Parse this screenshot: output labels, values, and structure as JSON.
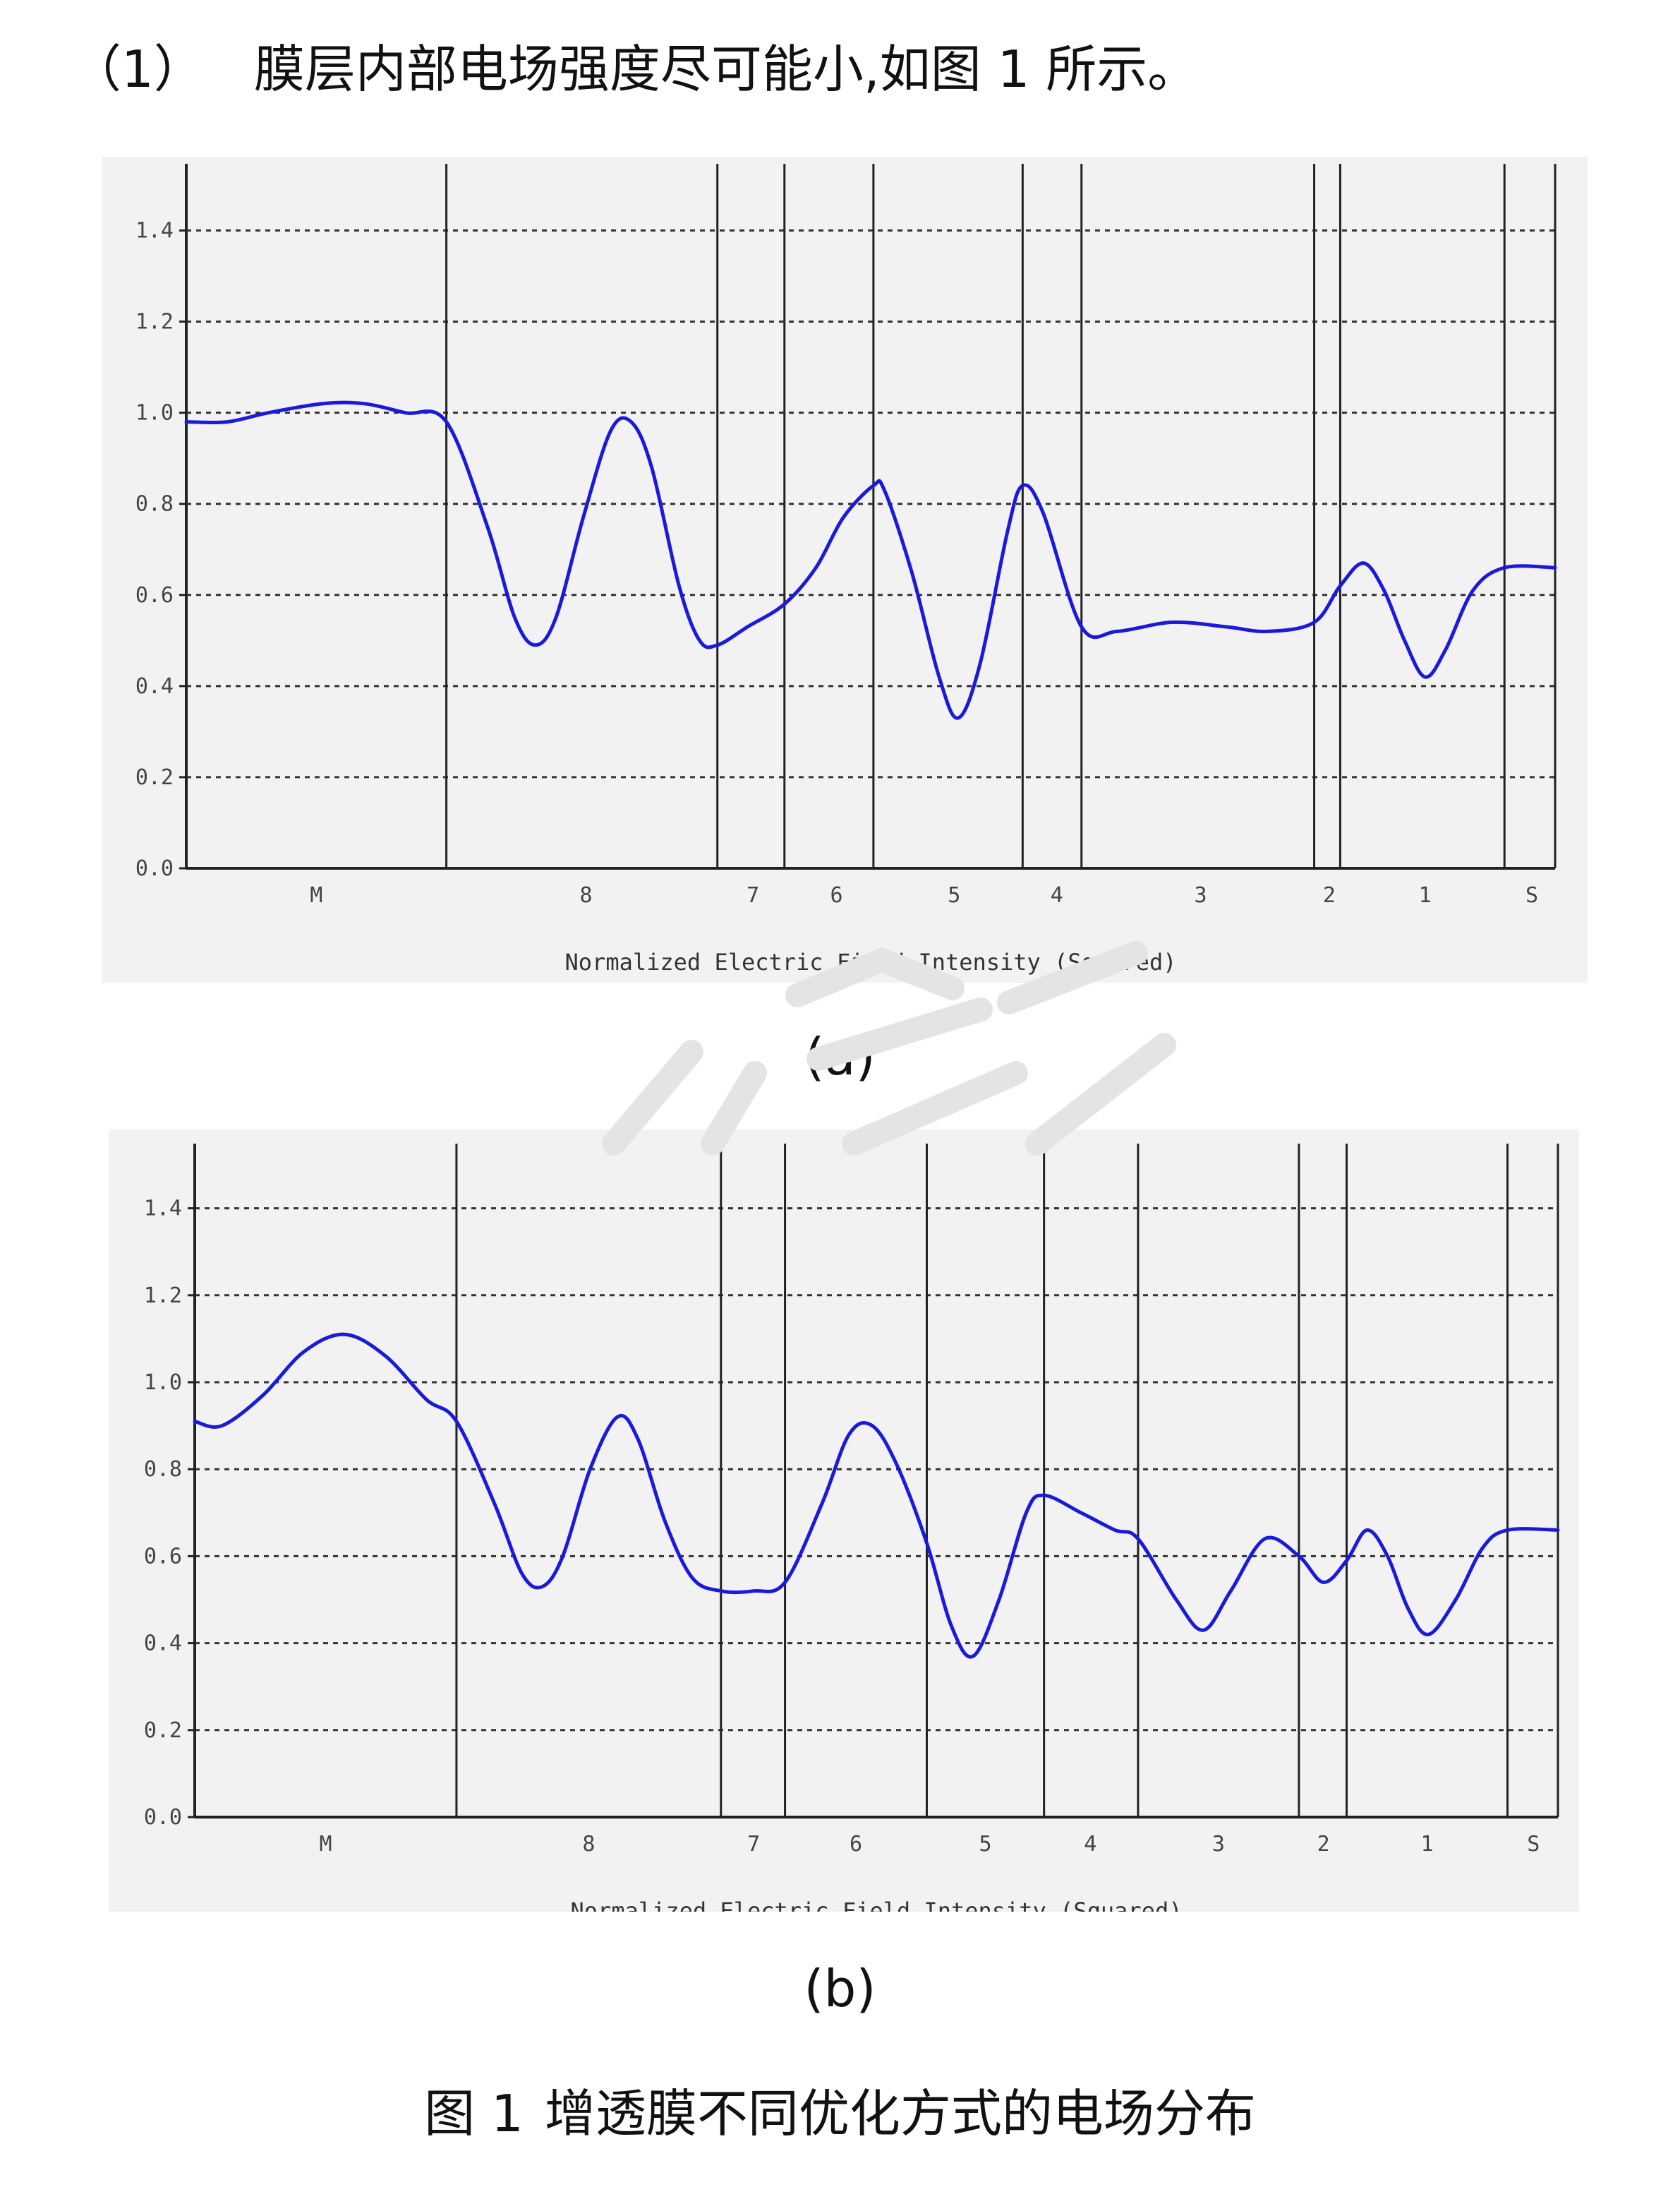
{
  "heading": {
    "number": "（1）",
    "text": "膜层内部电场强度尽可能小,如图 1 所示。"
  },
  "figure_caption": {
    "label": "图 1",
    "text": "增透膜不同优化方式的电场分布"
  },
  "chart_data": [
    {
      "id": "a",
      "panel_label": "(a)",
      "type": "line",
      "xlabel": "Normalized Electric Field Intensity (Squared)",
      "ylabel": "",
      "ylim": [
        0,
        1.5
      ],
      "yticks": [
        "0.0",
        "0.2",
        "0.4",
        "0.6",
        "0.8",
        "1.0",
        "1.2",
        "1.4"
      ],
      "grid": "horizontal dashed",
      "x_axis": "layer position from medium M through layers 8..1 to substrate S",
      "boundaries": [
        0,
        0.19,
        0.388,
        0.437,
        0.502,
        0.611,
        0.654,
        0.824,
        0.843,
        0.963,
        1.0
      ],
      "layers": [
        {
          "label": "M",
          "center": 0.095
        },
        {
          "label": "8",
          "center": 0.292
        },
        {
          "label": "7",
          "center": 0.414
        },
        {
          "label": "6",
          "center": 0.475
        },
        {
          "label": "5",
          "center": 0.561
        },
        {
          "label": "4",
          "center": 0.636
        },
        {
          "label": "3",
          "center": 0.741
        },
        {
          "label": "2",
          "center": 0.835
        },
        {
          "label": "1",
          "center": 0.905
        },
        {
          "label": "S",
          "center": 0.983
        }
      ],
      "series": [
        {
          "color": "#1a1adb",
          "points": [
            [
              0.0,
              0.98
            ],
            [
              0.03,
              0.98
            ],
            [
              0.06,
              1.0
            ],
            [
              0.1,
              1.02
            ],
            [
              0.13,
              1.02
            ],
            [
              0.16,
              1.0
            ],
            [
              0.19,
              0.98
            ],
            [
              0.22,
              0.75
            ],
            [
              0.24,
              0.55
            ],
            [
              0.255,
              0.49
            ],
            [
              0.27,
              0.55
            ],
            [
              0.29,
              0.77
            ],
            [
              0.31,
              0.96
            ],
            [
              0.325,
              0.98
            ],
            [
              0.34,
              0.88
            ],
            [
              0.36,
              0.62
            ],
            [
              0.375,
              0.5
            ],
            [
              0.388,
              0.49
            ],
            [
              0.41,
              0.53
            ],
            [
              0.437,
              0.58
            ],
            [
              0.46,
              0.66
            ],
            [
              0.48,
              0.77
            ],
            [
              0.502,
              0.84
            ],
            [
              0.51,
              0.83
            ],
            [
              0.53,
              0.65
            ],
            [
              0.55,
              0.42
            ],
            [
              0.564,
              0.33
            ],
            [
              0.58,
              0.45
            ],
            [
              0.6,
              0.74
            ],
            [
              0.611,
              0.84
            ],
            [
              0.626,
              0.78
            ],
            [
              0.654,
              0.53
            ],
            [
              0.68,
              0.52
            ],
            [
              0.72,
              0.54
            ],
            [
              0.76,
              0.53
            ],
            [
              0.79,
              0.52
            ],
            [
              0.824,
              0.54
            ],
            [
              0.843,
              0.62
            ],
            [
              0.86,
              0.67
            ],
            [
              0.875,
              0.61
            ],
            [
              0.89,
              0.5
            ],
            [
              0.905,
              0.42
            ],
            [
              0.92,
              0.48
            ],
            [
              0.94,
              0.61
            ],
            [
              0.963,
              0.66
            ],
            [
              1.0,
              0.66
            ]
          ]
        }
      ]
    },
    {
      "id": "b",
      "panel_label": "(b)",
      "type": "line",
      "xlabel": "Normalized Electric Field Intensity (Squared)",
      "ylabel": "",
      "ylim": [
        0,
        1.5
      ],
      "yticks": [
        "0.0",
        "0.2",
        "0.4",
        "0.6",
        "0.8",
        "1.0",
        "1.2",
        "1.4"
      ],
      "grid": "horizontal dashed",
      "x_axis": "layer position from medium M through layers 8..1 to substrate S",
      "boundaries": [
        0,
        0.192,
        0.386,
        0.433,
        0.537,
        0.623,
        0.692,
        0.81,
        0.845,
        0.963,
        1.0
      ],
      "layers": [
        {
          "label": "M",
          "center": 0.096
        },
        {
          "label": "8",
          "center": 0.289
        },
        {
          "label": "7",
          "center": 0.41
        },
        {
          "label": "6",
          "center": 0.485
        },
        {
          "label": "5",
          "center": 0.58
        },
        {
          "label": "4",
          "center": 0.657
        },
        {
          "label": "3",
          "center": 0.751
        },
        {
          "label": "2",
          "center": 0.828
        },
        {
          "label": "1",
          "center": 0.904
        },
        {
          "label": "S",
          "center": 0.982
        }
      ],
      "series": [
        {
          "color": "#1a1adb",
          "points": [
            [
              0.0,
              0.91
            ],
            [
              0.02,
              0.9
            ],
            [
              0.05,
              0.97
            ],
            [
              0.08,
              1.07
            ],
            [
              0.11,
              1.11
            ],
            [
              0.14,
              1.06
            ],
            [
              0.17,
              0.96
            ],
            [
              0.192,
              0.91
            ],
            [
              0.22,
              0.72
            ],
            [
              0.24,
              0.56
            ],
            [
              0.255,
              0.53
            ],
            [
              0.27,
              0.6
            ],
            [
              0.29,
              0.8
            ],
            [
              0.31,
              0.92
            ],
            [
              0.325,
              0.87
            ],
            [
              0.345,
              0.68
            ],
            [
              0.365,
              0.55
            ],
            [
              0.386,
              0.52
            ],
            [
              0.41,
              0.52
            ],
            [
              0.433,
              0.54
            ],
            [
              0.46,
              0.72
            ],
            [
              0.48,
              0.88
            ],
            [
              0.497,
              0.9
            ],
            [
              0.515,
              0.81
            ],
            [
              0.537,
              0.63
            ],
            [
              0.555,
              0.44
            ],
            [
              0.571,
              0.37
            ],
            [
              0.59,
              0.5
            ],
            [
              0.61,
              0.7
            ],
            [
              0.623,
              0.74
            ],
            [
              0.65,
              0.7
            ],
            [
              0.675,
              0.66
            ],
            [
              0.692,
              0.64
            ],
            [
              0.72,
              0.5
            ],
            [
              0.74,
              0.43
            ],
            [
              0.76,
              0.52
            ],
            [
              0.785,
              0.64
            ],
            [
              0.81,
              0.6
            ],
            [
              0.828,
              0.54
            ],
            [
              0.845,
              0.59
            ],
            [
              0.86,
              0.66
            ],
            [
              0.875,
              0.6
            ],
            [
              0.89,
              0.48
            ],
            [
              0.905,
              0.42
            ],
            [
              0.925,
              0.5
            ],
            [
              0.945,
              0.62
            ],
            [
              0.963,
              0.66
            ],
            [
              1.0,
              0.66
            ]
          ]
        }
      ]
    }
  ]
}
